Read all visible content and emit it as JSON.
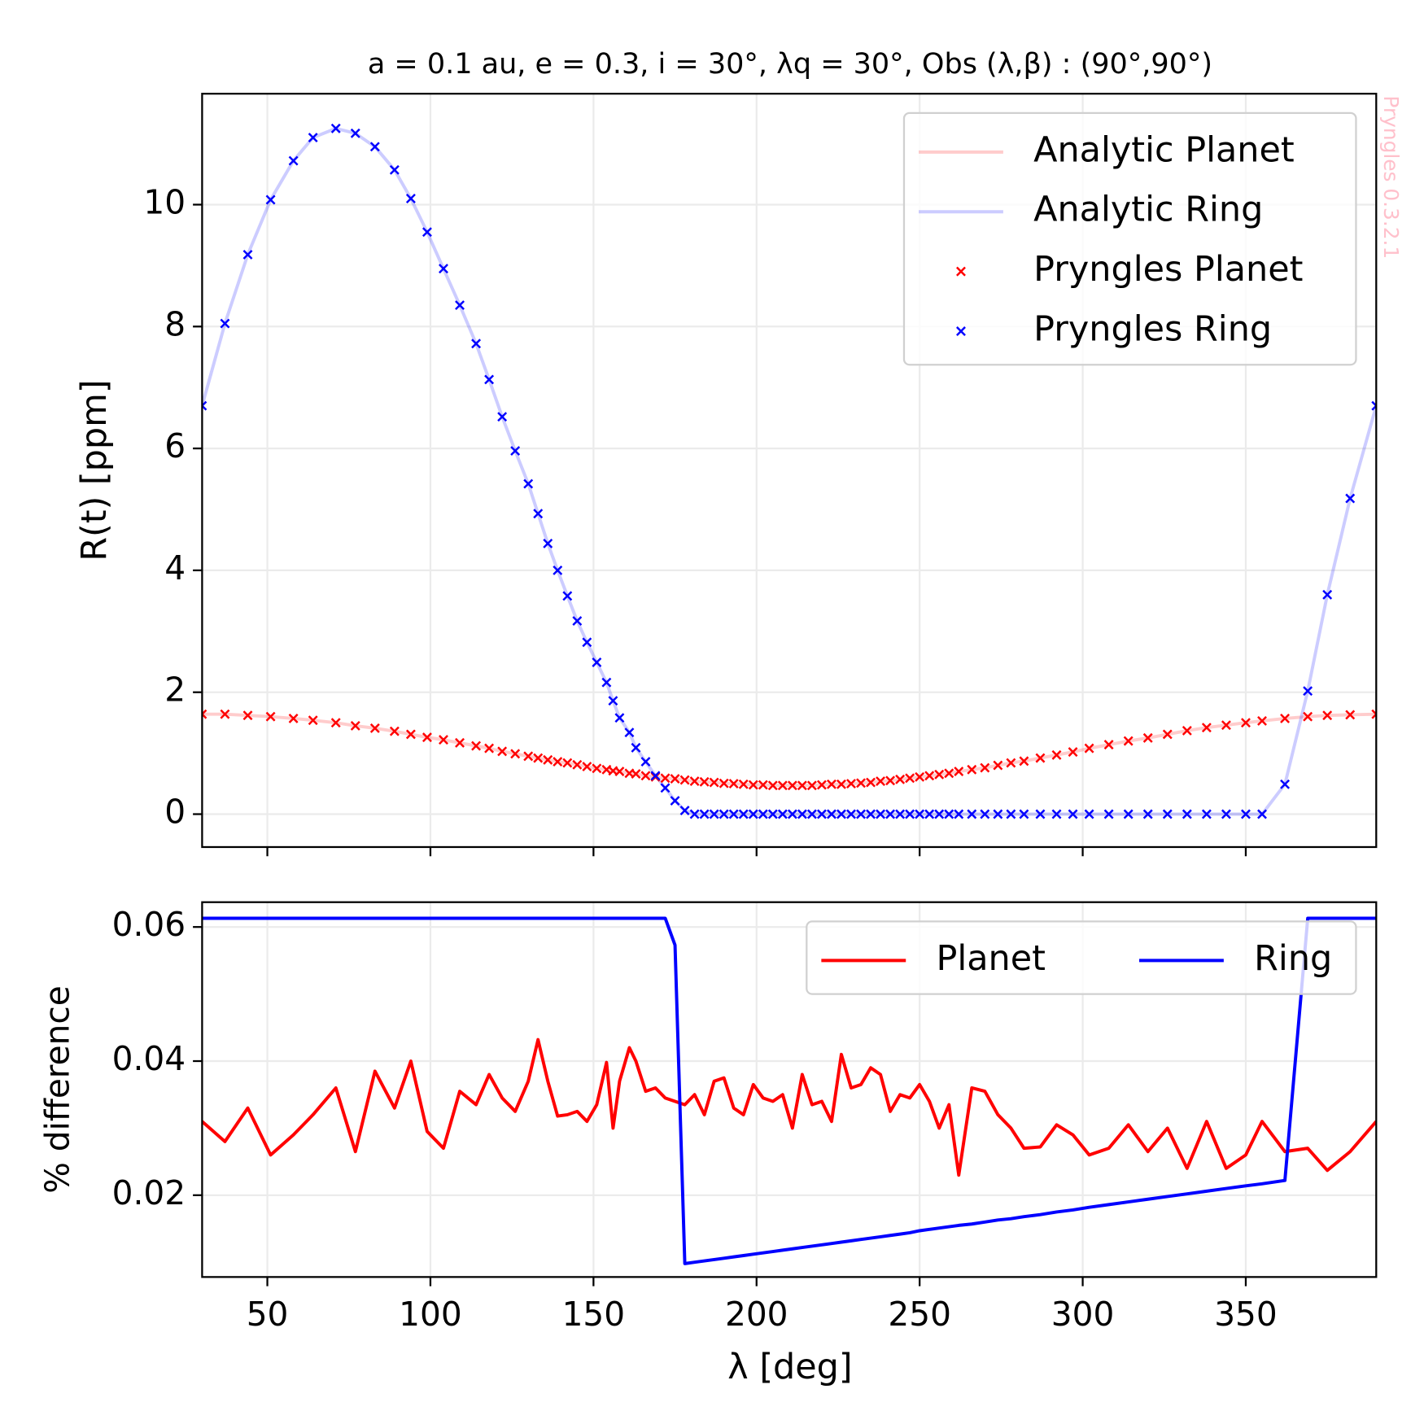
{
  "chart_data": [
    {
      "type": "line",
      "title": "a = 0.1 au, e = 0.3, i = 30°, λq = 30°, Obs (λ,β) : (90°,90°)",
      "ylabel": "R(t) [ppm]",
      "annotation": "Pryngles 0.3.2.1",
      "xlim": [
        30,
        390
      ],
      "ylim": [
        -0.54,
        11.82
      ],
      "xticks": [
        50,
        100,
        150,
        200,
        250,
        300,
        350
      ],
      "yticks": [
        0,
        2,
        4,
        6,
        8,
        10
      ],
      "grid": true,
      "legend": "upper right",
      "x": [
        30,
        37,
        44,
        51,
        58,
        64,
        71,
        77,
        83,
        89,
        94,
        99,
        104,
        109,
        114,
        118,
        122,
        126,
        130,
        133,
        136,
        139,
        142,
        145,
        148,
        151,
        154,
        156,
        158,
        161,
        163,
        166,
        169,
        172,
        175,
        178,
        181,
        184,
        187,
        190,
        193,
        196,
        199,
        202,
        205,
        208,
        211,
        214,
        217,
        220,
        223,
        226,
        229,
        232,
        235,
        238,
        241,
        244,
        247,
        250,
        253,
        256,
        259,
        262,
        266,
        270,
        274,
        278,
        282,
        287,
        292,
        297,
        302,
        308,
        314,
        320,
        326,
        332,
        338,
        344,
        350,
        355,
        362,
        369,
        375,
        382,
        390
      ],
      "series": [
        {
          "name": "Analytic Planet",
          "color": "#ff0000",
          "alpha": 0.2,
          "marker": null,
          "values": [
            1.64,
            1.64,
            1.62,
            1.6,
            1.57,
            1.54,
            1.5,
            1.45,
            1.41,
            1.36,
            1.31,
            1.26,
            1.22,
            1.17,
            1.12,
            1.08,
            1.03,
            0.99,
            0.95,
            0.92,
            0.89,
            0.86,
            0.84,
            0.81,
            0.78,
            0.75,
            0.73,
            0.71,
            0.7,
            0.67,
            0.66,
            0.63,
            0.61,
            0.59,
            0.58,
            0.56,
            0.54,
            0.53,
            0.52,
            0.505,
            0.5,
            0.49,
            0.48,
            0.48,
            0.47,
            0.47,
            0.47,
            0.47,
            0.47,
            0.48,
            0.49,
            0.49,
            0.5,
            0.51,
            0.52,
            0.54,
            0.55,
            0.57,
            0.59,
            0.61,
            0.63,
            0.65,
            0.67,
            0.7,
            0.73,
            0.76,
            0.8,
            0.84,
            0.87,
            0.92,
            0.97,
            1.02,
            1.08,
            1.14,
            1.2,
            1.25,
            1.31,
            1.37,
            1.42,
            1.46,
            1.5,
            1.53,
            1.57,
            1.6,
            1.62,
            1.63,
            1.64
          ]
        },
        {
          "name": "Analytic Ring",
          "color": "#0000ff",
          "alpha": 0.2,
          "marker": null,
          "values": [
            6.7,
            8.05,
            9.18,
            10.08,
            10.72,
            11.1,
            11.25,
            11.17,
            10.95,
            10.57,
            10.1,
            9.55,
            8.95,
            8.35,
            7.72,
            7.13,
            6.52,
            5.96,
            5.42,
            4.93,
            4.44,
            4.0,
            3.58,
            3.17,
            2.82,
            2.49,
            2.16,
            1.86,
            1.58,
            1.34,
            1.09,
            0.86,
            0.63,
            0.43,
            0.22,
            0.06,
            0,
            0,
            0,
            0,
            0,
            0,
            0,
            0,
            0,
            0,
            0,
            0,
            0,
            0,
            0,
            0,
            0,
            0,
            0,
            0,
            0,
            0,
            0,
            0,
            0,
            0,
            0,
            0,
            0,
            0,
            0,
            0,
            0,
            0,
            0,
            0,
            0,
            0,
            0,
            0,
            0,
            0,
            0,
            0,
            0,
            0,
            0.49,
            2.02,
            3.6,
            5.18,
            6.7
          ]
        },
        {
          "name": "Pryngles Planet",
          "color": "#ff0000",
          "alpha": 1,
          "marker": "x",
          "values": [
            1.64,
            1.64,
            1.62,
            1.6,
            1.57,
            1.54,
            1.5,
            1.45,
            1.41,
            1.36,
            1.31,
            1.26,
            1.22,
            1.17,
            1.12,
            1.08,
            1.03,
            0.99,
            0.95,
            0.92,
            0.89,
            0.86,
            0.84,
            0.81,
            0.78,
            0.75,
            0.73,
            0.71,
            0.7,
            0.67,
            0.66,
            0.63,
            0.61,
            0.59,
            0.58,
            0.56,
            0.54,
            0.53,
            0.52,
            0.505,
            0.5,
            0.49,
            0.48,
            0.48,
            0.47,
            0.47,
            0.47,
            0.47,
            0.47,
            0.48,
            0.49,
            0.49,
            0.5,
            0.51,
            0.52,
            0.54,
            0.55,
            0.57,
            0.59,
            0.61,
            0.63,
            0.65,
            0.67,
            0.7,
            0.73,
            0.76,
            0.8,
            0.84,
            0.87,
            0.92,
            0.97,
            1.02,
            1.08,
            1.14,
            1.2,
            1.25,
            1.31,
            1.37,
            1.42,
            1.46,
            1.5,
            1.53,
            1.57,
            1.6,
            1.62,
            1.63,
            1.64
          ]
        },
        {
          "name": "Pryngles Ring",
          "color": "#0000ff",
          "alpha": 1,
          "marker": "x",
          "values": [
            6.7,
            8.05,
            9.18,
            10.08,
            10.72,
            11.1,
            11.25,
            11.17,
            10.95,
            10.57,
            10.1,
            9.55,
            8.95,
            8.35,
            7.72,
            7.13,
            6.52,
            5.96,
            5.42,
            4.93,
            4.44,
            4.0,
            3.58,
            3.17,
            2.82,
            2.49,
            2.16,
            1.86,
            1.58,
            1.34,
            1.09,
            0.86,
            0.63,
            0.43,
            0.22,
            0.06,
            0,
            0,
            0,
            0,
            0,
            0,
            0,
            0,
            0,
            0,
            0,
            0,
            0,
            0,
            0,
            0,
            0,
            0,
            0,
            0,
            0,
            0,
            0,
            0,
            0,
            0,
            0,
            0,
            0,
            0,
            0,
            0,
            0,
            0,
            0,
            0,
            0,
            0,
            0,
            0,
            0,
            0,
            0,
            0,
            0,
            0,
            0.49,
            2.02,
            3.6,
            5.18,
            6.7
          ]
        }
      ]
    },
    {
      "type": "line",
      "xlabel": "λ [deg]",
      "ylabel": "% difference",
      "xlim": [
        30,
        390
      ],
      "ylim": [
        0.0078,
        0.0637
      ],
      "xticks": [
        50,
        100,
        150,
        200,
        250,
        300,
        350
      ],
      "yticks": [
        0.02,
        0.04,
        0.06
      ],
      "grid": true,
      "legend": "upper right",
      "legend_columns": 2,
      "x": [
        30,
        37,
        44,
        51,
        58,
        64,
        71,
        77,
        83,
        89,
        94,
        99,
        104,
        109,
        114,
        118,
        122,
        126,
        130,
        133,
        136,
        139,
        142,
        145,
        148,
        151,
        154,
        156,
        158,
        161,
        163,
        166,
        169,
        172,
        175,
        178,
        181,
        184,
        187,
        190,
        193,
        196,
        199,
        202,
        205,
        208,
        211,
        214,
        217,
        220,
        223,
        226,
        229,
        232,
        235,
        238,
        241,
        244,
        247,
        250,
        253,
        256,
        259,
        262,
        266,
        270,
        274,
        278,
        282,
        287,
        292,
        297,
        302,
        308,
        314,
        320,
        326,
        332,
        338,
        344,
        350,
        355,
        362,
        369,
        375,
        382,
        390
      ],
      "series": [
        {
          "name": "Planet",
          "color": "#ff0000",
          "alpha": 1,
          "marker": null,
          "values": [
            0.031,
            0.028,
            0.033,
            0.026,
            0.029,
            0.032,
            0.036,
            0.0265,
            0.0385,
            0.033,
            0.04,
            0.0295,
            0.027,
            0.0355,
            0.0335,
            0.038,
            0.0345,
            0.0325,
            0.037,
            0.0432,
            0.037,
            0.0318,
            0.032,
            0.0325,
            0.031,
            0.0335,
            0.0398,
            0.03,
            0.037,
            0.042,
            0.04,
            0.0355,
            0.036,
            0.0345,
            0.034,
            0.0335,
            0.035,
            0.032,
            0.037,
            0.0375,
            0.033,
            0.032,
            0.0365,
            0.0345,
            0.034,
            0.035,
            0.03,
            0.038,
            0.0335,
            0.034,
            0.031,
            0.041,
            0.036,
            0.0365,
            0.039,
            0.038,
            0.0325,
            0.035,
            0.0345,
            0.0365,
            0.034,
            0.03,
            0.0335,
            0.023,
            0.036,
            0.0355,
            0.032,
            0.03,
            0.027,
            0.0272,
            0.0305,
            0.029,
            0.026,
            0.027,
            0.0305,
            0.0265,
            0.03,
            0.024,
            0.031,
            0.024,
            0.026,
            0.031,
            0.0265,
            0.027,
            0.0237,
            0.0265,
            0.031
          ]
        },
        {
          "name": "Ring",
          "color": "#0000ff",
          "alpha": 1,
          "marker": null,
          "values": [
            0.0613,
            0.0613,
            0.0613,
            0.0613,
            0.0613,
            0.0613,
            0.0613,
            0.0613,
            0.0613,
            0.0613,
            0.0613,
            0.0613,
            0.0613,
            0.0613,
            0.0613,
            0.0613,
            0.0613,
            0.0613,
            0.0613,
            0.0613,
            0.0613,
            0.0613,
            0.0613,
            0.0613,
            0.0613,
            0.0613,
            0.0613,
            0.0613,
            0.0613,
            0.0613,
            0.0613,
            0.0613,
            0.0613,
            0.0613,
            0.0573,
            0.0098,
            0.01,
            0.0102,
            0.0104,
            0.0106,
            0.0108,
            0.011,
            0.0112,
            0.0114,
            0.0116,
            0.0118,
            0.012,
            0.0122,
            0.0124,
            0.0126,
            0.0128,
            0.013,
            0.0132,
            0.0134,
            0.0136,
            0.0138,
            0.014,
            0.0142,
            0.0144,
            0.0147,
            0.0149,
            0.0151,
            0.0153,
            0.0155,
            0.0157,
            0.016,
            0.0163,
            0.0165,
            0.0168,
            0.0171,
            0.0175,
            0.0178,
            0.0182,
            0.0186,
            0.019,
            0.0194,
            0.0198,
            0.0202,
            0.0206,
            0.021,
            0.0214,
            0.0217,
            0.0222,
            0.0613,
            0.0613,
            0.0613,
            0.0613
          ]
        }
      ]
    }
  ]
}
